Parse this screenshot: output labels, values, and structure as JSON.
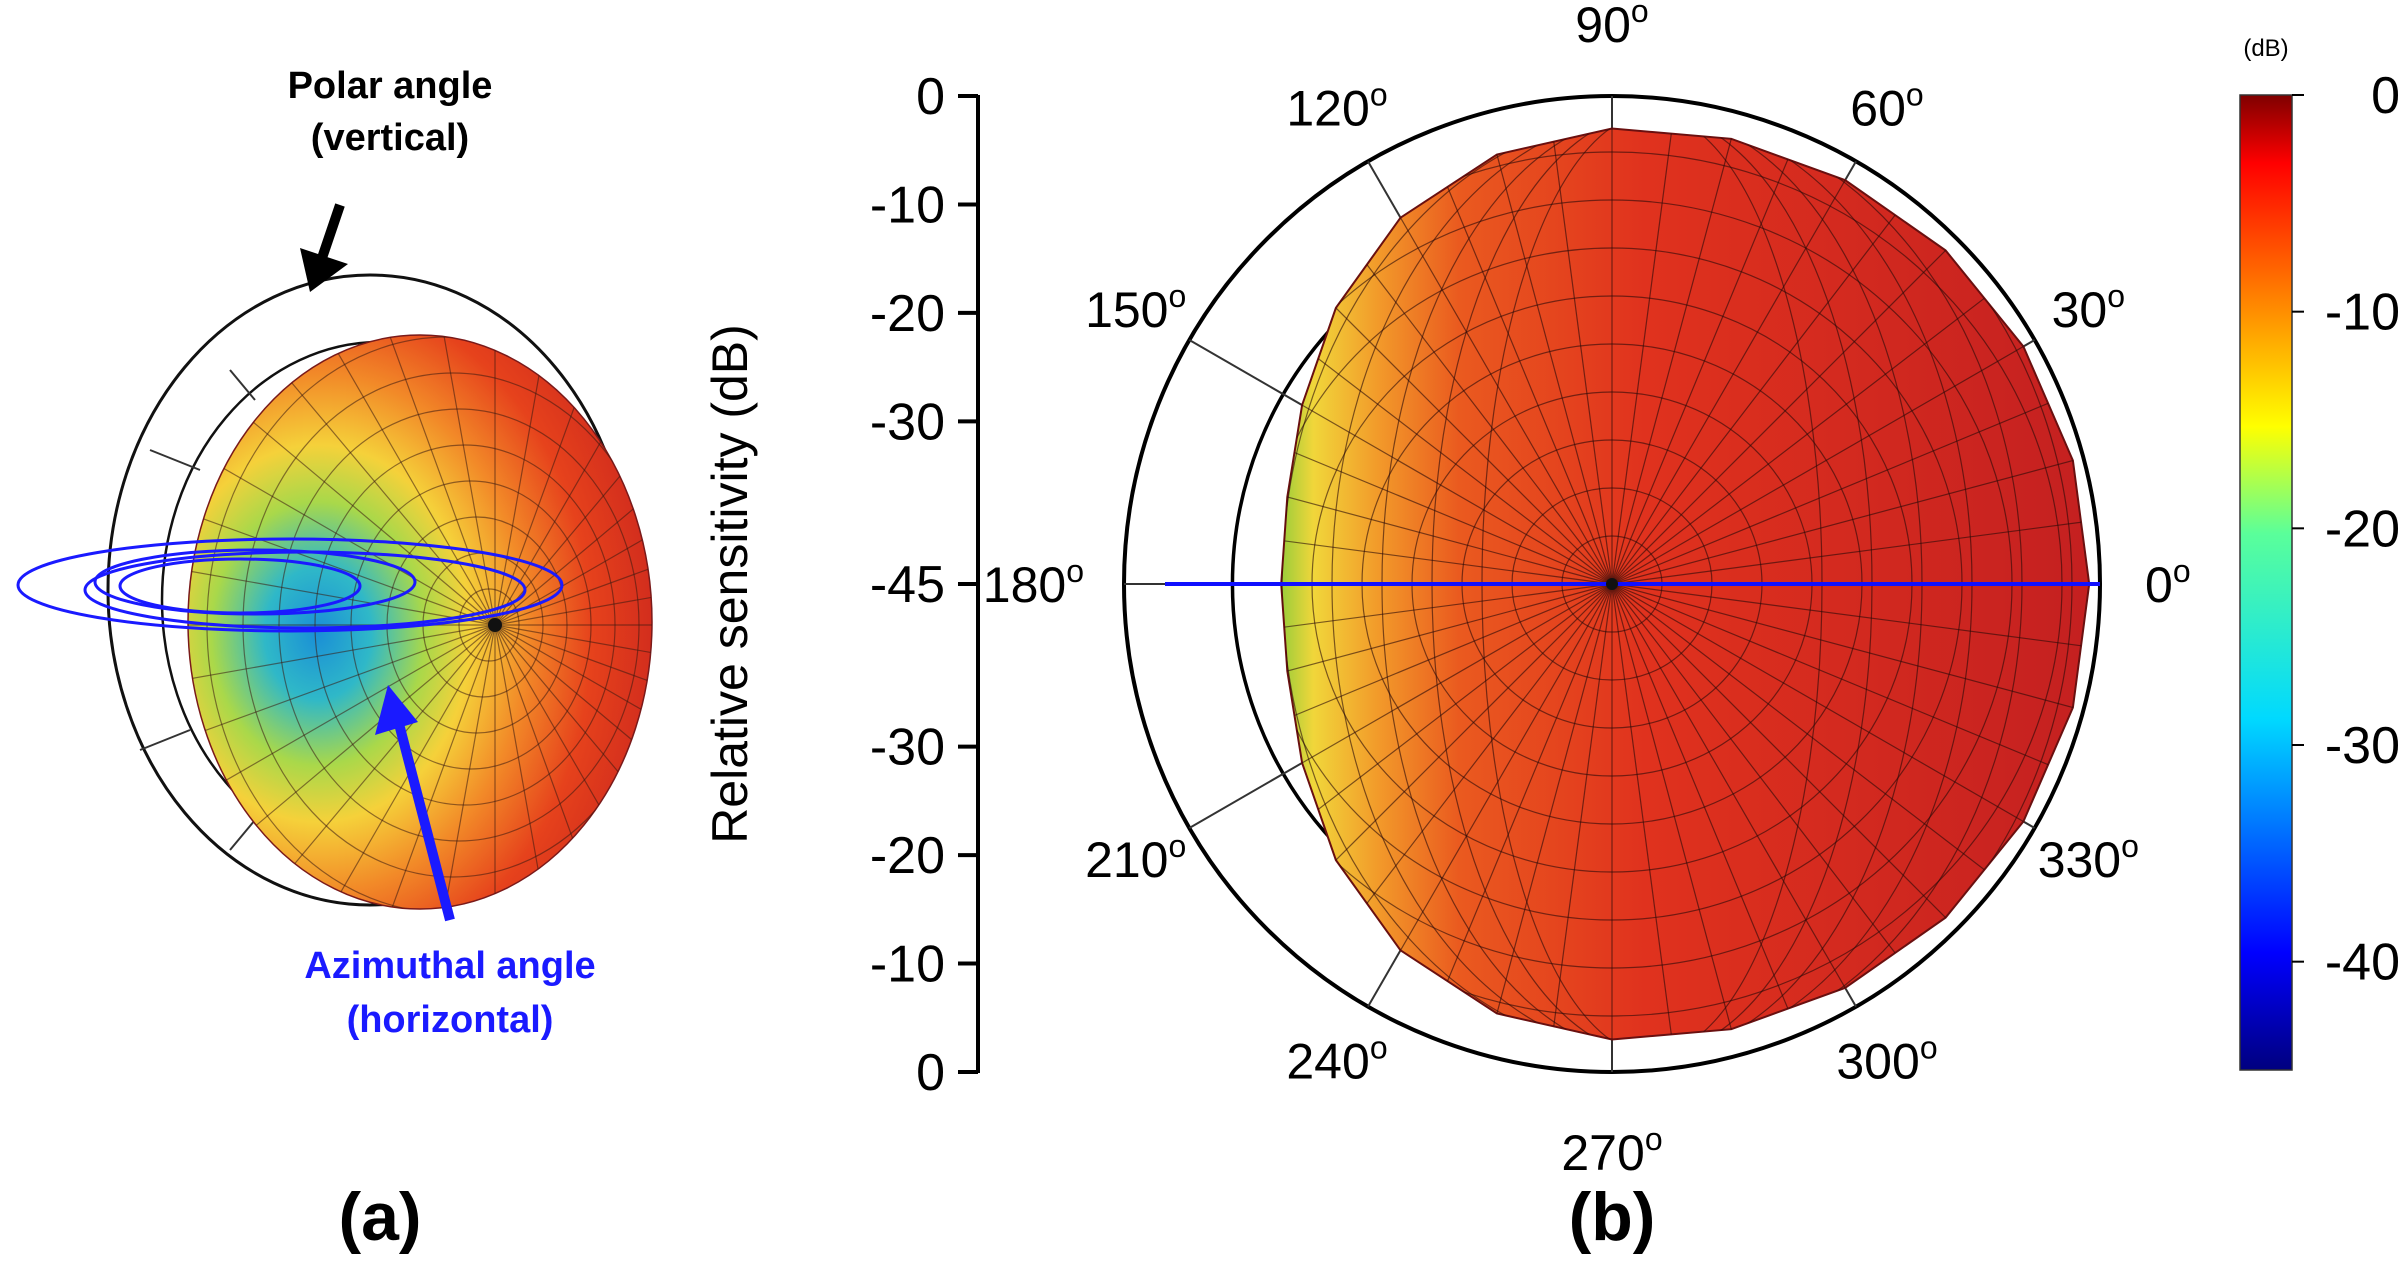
{
  "chart_data": [
    {
      "panel": "(a)",
      "type": "3d-polar-pattern",
      "annotations": [
        {
          "text_line1": "Polar angle",
          "text_line2": "(vertical)",
          "color": "#000000"
        },
        {
          "text_line1": "Azimuthal angle",
          "text_line2": "(horizontal)",
          "color": "#1a1aff"
        }
      ],
      "colormap": "jet",
      "color_range_db": [
        -45,
        0
      ],
      "min_direction": "back (180°)",
      "max_direction": "front (0°)"
    },
    {
      "panel": "(b)",
      "type": "polar",
      "ylabel": "Relative sensitivity (dB)",
      "radial_ticks": [
        "0",
        "-10",
        "-20",
        "-30",
        "-45",
        "-30",
        "-20",
        "-10",
        "0"
      ],
      "radial_tick_values": [
        0,
        -10,
        -20,
        -30,
        -45,
        -30,
        -20,
        -10,
        0
      ],
      "radial_rings_db": [
        0,
        -10,
        -20
      ],
      "rlim": [
        -45,
        0
      ],
      "angle_ticks": [
        {
          "deg": 0,
          "label": "0"
        },
        {
          "deg": 30,
          "label": "30"
        },
        {
          "deg": 60,
          "label": "60"
        },
        {
          "deg": 90,
          "label": "90"
        },
        {
          "deg": 120,
          "label": "120"
        },
        {
          "deg": 150,
          "label": "150"
        },
        {
          "deg": 180,
          "label": "180"
        },
        {
          "deg": 210,
          "label": "210"
        },
        {
          "deg": 240,
          "label": "240"
        },
        {
          "deg": 270,
          "label": "270"
        },
        {
          "deg": 300,
          "label": "300"
        },
        {
          "deg": 330,
          "label": "330"
        }
      ],
      "degree_symbol": "o",
      "series": [
        {
          "name": "sensitivity",
          "angles_deg": [
            0,
            15,
            30,
            45,
            60,
            75,
            90,
            105,
            120,
            135,
            150,
            165,
            180,
            195,
            210,
            225,
            240,
            255,
            270,
            285,
            300,
            315,
            330,
            345,
            360
          ],
          "values_db": [
            -1,
            -1,
            -1.2,
            -1.5,
            -2,
            -2.5,
            -3,
            -4,
            -6,
            -9,
            -12,
            -14,
            -14.5,
            -14,
            -12,
            -9,
            -6,
            -4,
            -3,
            -2.5,
            -2,
            -1.5,
            -1.2,
            -1,
            -1
          ],
          "fill_front": "#d02424",
          "fill_back": "#e8401c"
        }
      ],
      "baseline_line_color": "#1010ff"
    },
    {
      "type": "colorbar",
      "unit": "(dB)",
      "ticks": [
        "0",
        "-10",
        "-20",
        "-30",
        "-40"
      ],
      "tick_values": [
        0,
        -10,
        -20,
        -30,
        -40
      ],
      "range": [
        -45,
        0
      ],
      "colormap": "jet"
    }
  ],
  "panel_labels": {
    "a": "(a)",
    "b": "(b)"
  }
}
